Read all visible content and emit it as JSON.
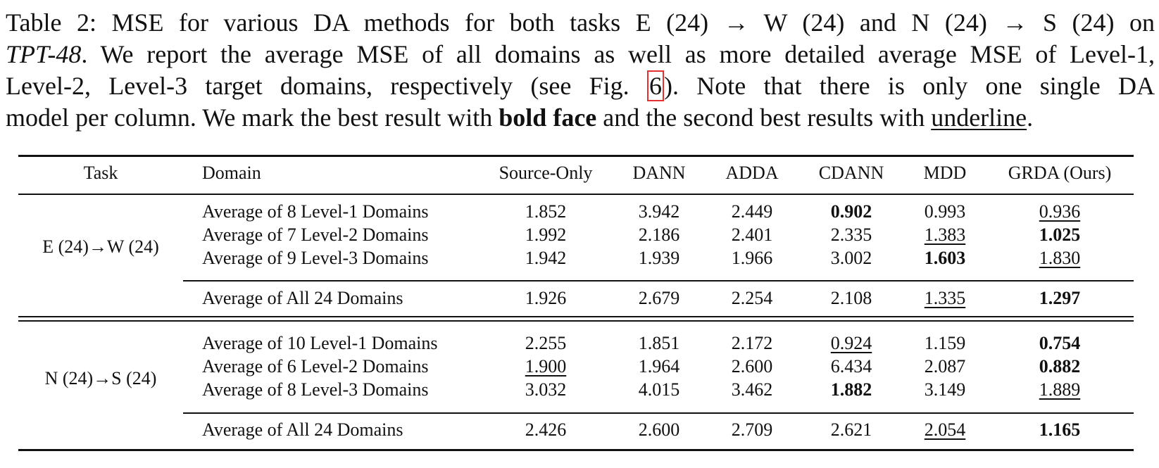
{
  "caption": {
    "prefix": "Table 2: MSE for various DA methods for both tasks E (24) → W (24) and N (24) → S (24) on",
    "dataset": "TPT-48",
    "line2_rest": ". We report the average MSE of all domains as well as more detailed average MSE of Level-1,",
    "line3_a": "Level-2, Level-3 target domains, respectively (see Fig. ",
    "figref": "6",
    "line3_b": "). Note that there is only one single DA",
    "line4_a": "model per column. We mark the best result with ",
    "bold_word": "bold face",
    "line4_b": " and the second best results with ",
    "underline_word": "underline",
    "line4_c": "."
  },
  "table": {
    "headers": [
      "Task",
      "Domain",
      "Source-Only",
      "DANN",
      "ADDA",
      "CDANN",
      "MDD",
      "GRDA (Ours)"
    ],
    "groups": [
      {
        "task": "E (24)→W (24)",
        "rows": [
          {
            "domain": "Average of 8 Level-1 Domains",
            "values": [
              "1.852",
              "3.942",
              "2.449",
              "0.902",
              "0.993",
              "0.936"
            ],
            "style": [
              "",
              "",
              "",
              "b",
              "",
              "u"
            ]
          },
          {
            "domain": "Average of 7 Level-2 Domains",
            "values": [
              "1.992",
              "2.186",
              "2.401",
              "2.335",
              "1.383",
              "1.025"
            ],
            "style": [
              "",
              "",
              "",
              "",
              "u",
              "b"
            ]
          },
          {
            "domain": "Average of 9 Level-3 Domains",
            "values": [
              "1.942",
              "1.939",
              "1.966",
              "3.002",
              "1.603",
              "1.830"
            ],
            "style": [
              "",
              "",
              "",
              "",
              "b",
              "u"
            ]
          }
        ],
        "total": {
          "domain": "Average of All 24 Domains",
          "values": [
            "1.926",
            "2.679",
            "2.254",
            "2.108",
            "1.335",
            "1.297"
          ],
          "style": [
            "",
            "",
            "",
            "",
            "u",
            "b"
          ]
        }
      },
      {
        "task": "N (24)→S (24)",
        "rows": [
          {
            "domain": "Average of 10 Level-1 Domains",
            "values": [
              "2.255",
              "1.851",
              "2.172",
              "0.924",
              "1.159",
              "0.754"
            ],
            "style": [
              "",
              "",
              "",
              "u",
              "",
              "b"
            ]
          },
          {
            "domain": "Average of 6 Level-2 Domains",
            "values": [
              "1.900",
              "1.964",
              "2.600",
              "6.434",
              "2.087",
              "0.882"
            ],
            "style": [
              "u",
              "",
              "",
              "",
              "",
              "b"
            ]
          },
          {
            "domain": "Average of 8 Level-3 Domains",
            "values": [
              "3.032",
              "4.015",
              "3.462",
              "1.882",
              "3.149",
              "1.889"
            ],
            "style": [
              "",
              "",
              "",
              "b",
              "",
              "u"
            ]
          }
        ],
        "total": {
          "domain": "Average of All 24 Domains",
          "values": [
            "2.426",
            "2.600",
            "2.709",
            "2.621",
            "2.054",
            "1.165"
          ],
          "style": [
            "",
            "",
            "",
            "",
            "u",
            "b"
          ]
        }
      }
    ]
  }
}
